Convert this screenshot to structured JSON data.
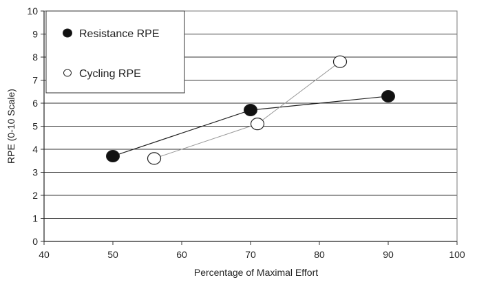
{
  "chart_data": {
    "type": "scatter",
    "xlabel": "Percentage of Maximal Effort",
    "ylabel": "RPE (0-10 Scale)",
    "xlim": [
      40,
      100
    ],
    "ylim": [
      0,
      10
    ],
    "x_ticks": [
      "40",
      "50",
      "60",
      "70",
      "80",
      "90",
      "100"
    ],
    "y_ticks": [
      "0",
      "1",
      "2",
      "3",
      "4",
      "5",
      "6",
      "7",
      "8",
      "9",
      "10"
    ],
    "grid": "horizontal",
    "legend_position": "top-left",
    "series": [
      {
        "name": "Resistance RPE",
        "marker": "filled-circle",
        "line_color": "#222222",
        "points": [
          {
            "x": 50,
            "y": 3.7
          },
          {
            "x": 70,
            "y": 5.7
          },
          {
            "x": 90,
            "y": 6.3
          }
        ]
      },
      {
        "name": "Cycling RPE",
        "marker": "open-circle",
        "line_color": "#999999",
        "points": [
          {
            "x": 56,
            "y": 3.6
          },
          {
            "x": 71,
            "y": 5.1
          },
          {
            "x": 83,
            "y": 7.8
          }
        ]
      }
    ]
  }
}
